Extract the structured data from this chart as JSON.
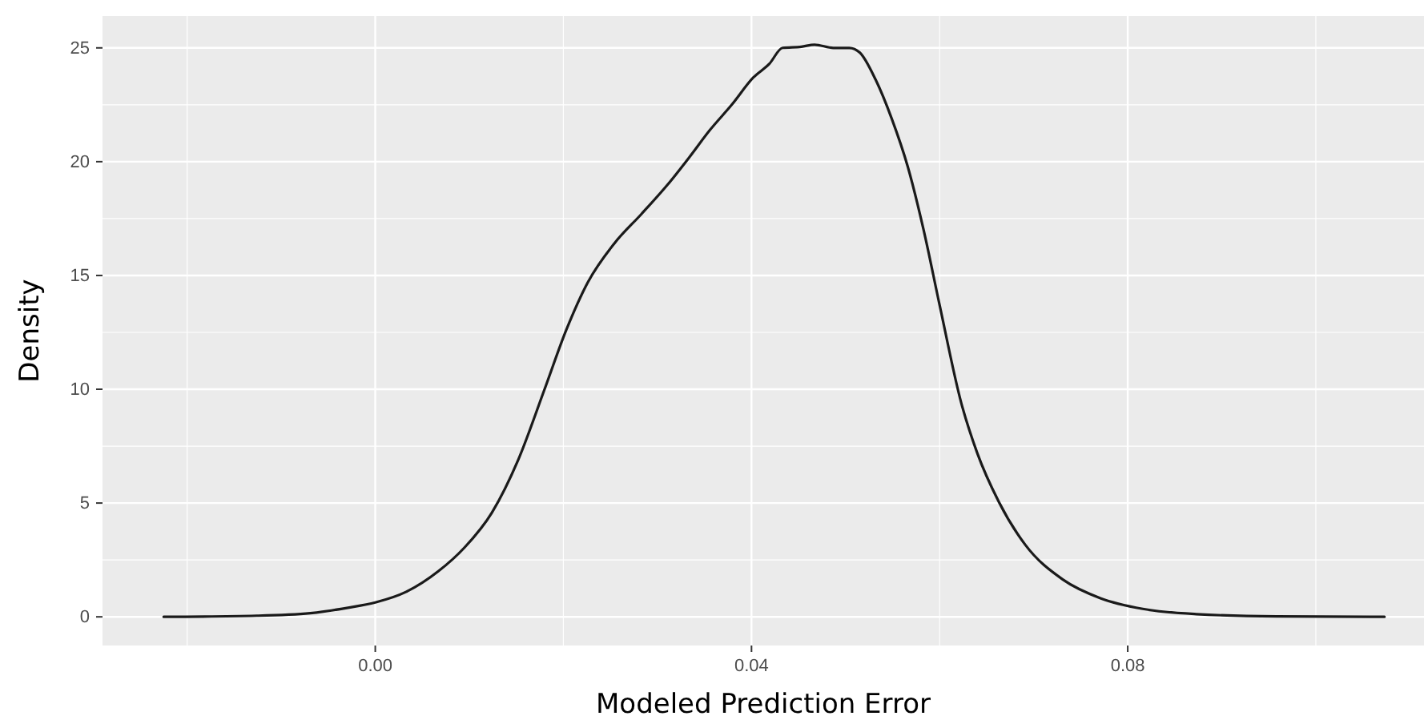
{
  "chart_data": {
    "type": "line",
    "xlabel": "Modeled Prediction Error",
    "ylabel": "Density",
    "x": [
      -0.0225,
      -0.0126,
      -0.0069,
      -0.0029,
      0.0,
      0.0033,
      0.0067,
      0.0095,
      0.0124,
      0.0152,
      0.018,
      0.0203,
      0.0226,
      0.0254,
      0.0283,
      0.0311,
      0.0334,
      0.0356,
      0.0379,
      0.0402,
      0.0419,
      0.0433,
      0.0453,
      0.0467,
      0.0487,
      0.0504,
      0.0515,
      0.0532,
      0.0549,
      0.0566,
      0.0583,
      0.06,
      0.0623,
      0.064,
      0.0663,
      0.0691,
      0.0731,
      0.0771,
      0.0816,
      0.0873,
      0.0958,
      0.1073
    ],
    "series": [
      {
        "color": "#1a1a1a",
        "values": [
          0,
          0.05,
          0.16,
          0.4,
          0.63,
          1.1,
          2.0,
          3.05,
          4.58,
          6.9,
          10.0,
          12.6,
          14.7,
          16.4,
          17.7,
          19.0,
          20.2,
          21.4,
          22.5,
          23.7,
          24.3,
          25.0,
          25.05,
          25.14,
          25.0,
          25.0,
          24.8,
          23.6,
          21.9,
          19.8,
          17.0,
          13.7,
          9.4,
          7.2,
          5.05,
          3.17,
          1.64,
          0.82,
          0.35,
          0.12,
          0.02,
          0
        ]
      }
    ],
    "xlim": [
      -0.029,
      0.1115
    ],
    "ylim": [
      -1.26,
      26.4
    ],
    "xticks": [
      {
        "value": 0,
        "label": "0.00"
      },
      {
        "value": 0.04,
        "label": "0.04"
      },
      {
        "value": 0.08,
        "label": "0.08"
      }
    ],
    "yticks": [
      0,
      5,
      10,
      15,
      20,
      25
    ],
    "grid": true,
    "marker": "none",
    "line_style": "solid"
  }
}
